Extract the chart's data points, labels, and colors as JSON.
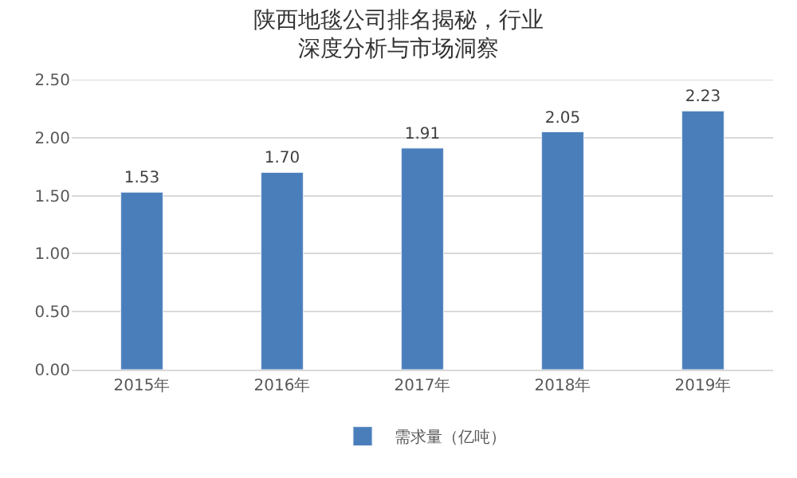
{
  "chart_data": {
    "type": "bar",
    "title": "陕西地毯公司排名揭秘，行业深度分析与市场洞察",
    "categories": [
      "2015年",
      "2016年",
      "2017年",
      "2018年",
      "2019年"
    ],
    "series": [
      {
        "name": "需求量（亿吨）",
        "color": "#4a7ebb",
        "values": [
          1.53,
          1.7,
          1.91,
          2.05,
          2.23
        ],
        "value_labels": [
          "1.53",
          "1.70",
          "1.91",
          "2.05",
          "2.23"
        ]
      }
    ],
    "ylim": [
      0,
      2.5
    ],
    "yticks": [
      "0.00",
      "0.50",
      "1.00",
      "1.50",
      "2.00",
      "2.50"
    ],
    "grid": "y",
    "legend": "bottom"
  }
}
